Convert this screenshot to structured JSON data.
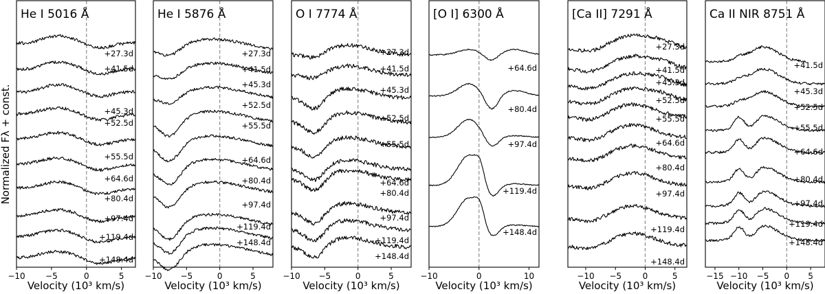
{
  "ylabel": "Normalized Fλ + const.",
  "chart_data": [
    {
      "type": "line",
      "title": "He I 5016 Å",
      "xlabel": "Velocity (10³ km/s)",
      "xlim": [
        -10,
        7
      ],
      "xticks": [
        -10,
        -5,
        0,
        5
      ],
      "epochs": [
        "+27.3d",
        "+41.5d",
        "+45.3d",
        "+52.5d",
        "+55.5d",
        "+64.6d",
        "+80.4d",
        "+97.4d",
        "+119.4d",
        "+148.4d"
      ]
    },
    {
      "type": "line",
      "title": "He I 5876 Å",
      "xlabel": "Velocity (10³ km/s)",
      "xlim": [
        -10,
        8
      ],
      "xticks": [
        -10,
        -5,
        0,
        5
      ],
      "epochs": [
        "+27.3d",
        "+41.5d",
        "+45.3d",
        "+52.5d",
        "+55.5d",
        "+64.6d",
        "+80.4d",
        "+97.4d",
        "+119.4d",
        "+148.4d"
      ]
    },
    {
      "type": "line",
      "title": "O I 7774 Å",
      "xlabel": "Velocity (10³ km/s)",
      "xlim": [
        -10,
        8
      ],
      "xticks": [
        -10,
        -5,
        0,
        5
      ],
      "epochs": [
        "+27.3d",
        "+41.5d",
        "+45.3d",
        "+52.5d",
        "+55.5d",
        "+64.6d",
        "+80.4d",
        "+97.4d",
        "+119.4d",
        "+148.4d"
      ]
    },
    {
      "type": "line",
      "title": "[O I] 6300 Å",
      "xlabel": "Velocity (10³ km/s)",
      "xlim": [
        -10,
        12
      ],
      "xticks": [
        -10,
        0,
        10
      ],
      "epochs": [
        "+64.6d",
        "+80.4d",
        "+97.4d",
        "+119.4d",
        "+148.4d"
      ]
    },
    {
      "type": "line",
      "title": "[Ca II] 7291 Å",
      "xlabel": "Velocity (10³ km/s)",
      "xlim": [
        -13,
        7
      ],
      "xticks": [
        -10,
        -5,
        0,
        5
      ],
      "epochs": [
        "+27.3d",
        "+41.5d",
        "+45.3d",
        "+52.5d",
        "+55.5d",
        "+64.6d",
        "+80.4d",
        "+97.4d",
        "+119.4d",
        "+148.4d"
      ]
    },
    {
      "type": "line",
      "title": "Ca II NIR 8751 Å",
      "xlabel": "Velocity (10³ km/s)",
      "xlim": [
        -17,
        8
      ],
      "xticks": [
        -15,
        -10,
        -5,
        0,
        5
      ],
      "epochs": [
        "+41.5d",
        "+45.3d",
        "+52.5d",
        "+55.5d",
        "+64.6d",
        "+80.4d",
        "+97.4d",
        "+119.4d",
        "+148.4d"
      ]
    }
  ]
}
